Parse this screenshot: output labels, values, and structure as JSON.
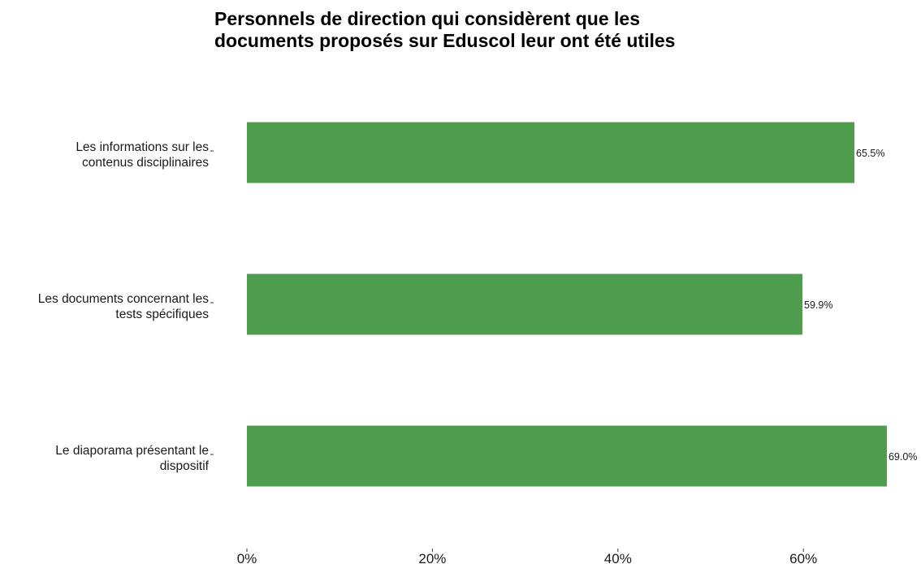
{
  "chart_data": {
    "type": "bar",
    "orientation": "horizontal",
    "title_lines": [
      "Personnels de direction qui considèrent que les",
      "documents proposés sur Eduscol leur ont été utiles"
    ],
    "categories": [
      [
        "Les informations sur les",
        "contenus disciplinaires"
      ],
      [
        "Les documents concernant les",
        "tests spécifiques"
      ],
      [
        "Le diaporama présentant le",
        "dispositif"
      ]
    ],
    "values": [
      65.5,
      59.9,
      69.0
    ],
    "data_labels": [
      "65.5%",
      "59.9%",
      "69.0%"
    ],
    "x_ticks": [
      0,
      20,
      40,
      60
    ],
    "x_tick_labels": [
      "0%",
      "20%",
      "40%",
      "60%"
    ],
    "xlim": [
      0,
      69.0
    ],
    "bar_color": "#4f9e4f",
    "grid": false,
    "legend": "none"
  }
}
